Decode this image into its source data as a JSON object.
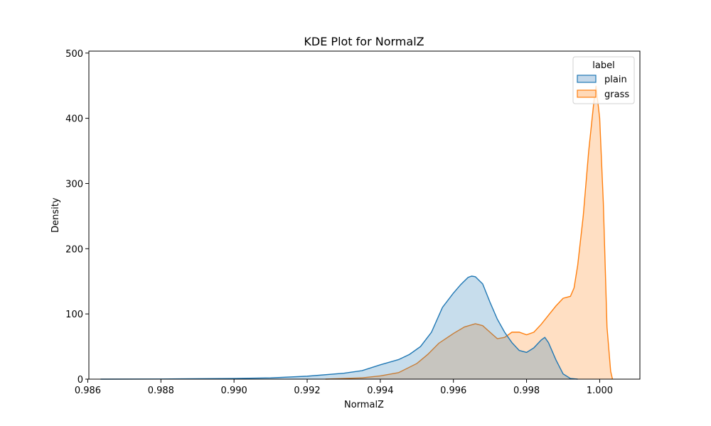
{
  "chart_data": {
    "type": "area",
    "title": "KDE Plot for NormalZ",
    "xlabel": "NormalZ",
    "ylabel": "Density",
    "xlim": [
      0.98603,
      1.0011
    ],
    "ylim": [
      0,
      503
    ],
    "xticks": [
      0.986,
      0.988,
      0.99,
      0.992,
      0.994,
      0.996,
      0.998,
      1.0
    ],
    "xtick_labels": [
      "0.986",
      "0.988",
      "0.990",
      "0.992",
      "0.994",
      "0.996",
      "0.998",
      "1.000"
    ],
    "yticks": [
      0,
      100,
      200,
      300,
      400,
      500
    ],
    "ytick_labels": [
      "0",
      "100",
      "200",
      "300",
      "400",
      "500"
    ],
    "grid": false,
    "legend": {
      "title": "label",
      "placement": "top-right"
    },
    "series": [
      {
        "name": "plain",
        "color": "#1f77b4",
        "fill": "#c4d8ea",
        "points": [
          [
            0.98635,
            0
          ],
          [
            0.988,
            0.2
          ],
          [
            0.99,
            1
          ],
          [
            0.991,
            2
          ],
          [
            0.992,
            4.5
          ],
          [
            0.993,
            9
          ],
          [
            0.9935,
            13
          ],
          [
            0.994,
            22
          ],
          [
            0.9945,
            30
          ],
          [
            0.9948,
            38
          ],
          [
            0.9951,
            50
          ],
          [
            0.9954,
            72
          ],
          [
            0.9957,
            110
          ],
          [
            0.996,
            132
          ],
          [
            0.9962,
            145
          ],
          [
            0.9964,
            156
          ],
          [
            0.9965,
            158
          ],
          [
            0.9966,
            157
          ],
          [
            0.9968,
            146
          ],
          [
            0.997,
            118
          ],
          [
            0.9972,
            92
          ],
          [
            0.9974,
            72
          ],
          [
            0.9976,
            56
          ],
          [
            0.9978,
            44
          ],
          [
            0.998,
            41
          ],
          [
            0.9982,
            48
          ],
          [
            0.9984,
            60
          ],
          [
            0.9985,
            64
          ],
          [
            0.9986,
            56
          ],
          [
            0.9988,
            30
          ],
          [
            0.999,
            8
          ],
          [
            0.9992,
            1
          ],
          [
            0.9994,
            0
          ]
        ]
      },
      {
        "name": "grass",
        "color": "#ff7f0e",
        "fill": "#ffd9b8",
        "points": [
          [
            0.9925,
            0
          ],
          [
            0.9935,
            2
          ],
          [
            0.994,
            5
          ],
          [
            0.9945,
            10
          ],
          [
            0.995,
            24
          ],
          [
            0.9953,
            38
          ],
          [
            0.9956,
            55
          ],
          [
            0.996,
            70
          ],
          [
            0.9963,
            80
          ],
          [
            0.9966,
            85
          ],
          [
            0.9968,
            82
          ],
          [
            0.997,
            72
          ],
          [
            0.9972,
            62
          ],
          [
            0.9974,
            64
          ],
          [
            0.9976,
            72
          ],
          [
            0.9978,
            72
          ],
          [
            0.998,
            68
          ],
          [
            0.9982,
            72
          ],
          [
            0.9984,
            84
          ],
          [
            0.9986,
            98
          ],
          [
            0.9988,
            112
          ],
          [
            0.999,
            124
          ],
          [
            0.9992,
            127
          ],
          [
            0.9993,
            140
          ],
          [
            0.9994,
            175
          ],
          [
            0.99955,
            250
          ],
          [
            0.9997,
            350
          ],
          [
            0.99985,
            430
          ],
          [
            0.9999,
            450
          ],
          [
            1.0,
            400
          ],
          [
            1.0001,
            270
          ],
          [
            1.0002,
            80
          ],
          [
            1.0003,
            12
          ],
          [
            1.00035,
            0
          ]
        ]
      }
    ]
  }
}
